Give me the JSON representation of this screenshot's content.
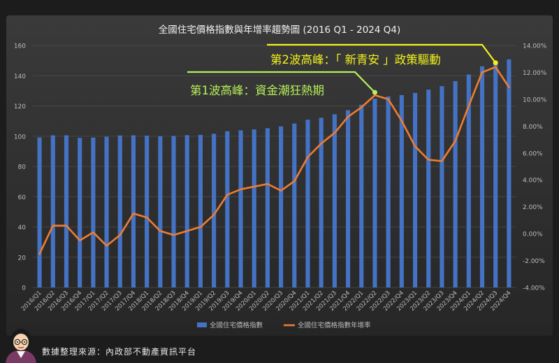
{
  "chart_data": {
    "type": "bar+line",
    "title": "全國住宅價格指數與年增率趨勢圖 (2016 Q1 - 2024 Q4)",
    "categories": [
      "2016/Q1",
      "2016/Q2",
      "2016/Q3",
      "2016/Q4",
      "2017/Q1",
      "2017/Q2",
      "2017/Q3",
      "2017/Q4",
      "2018/Q1",
      "2018/Q2",
      "2018/Q3",
      "2018/Q4",
      "2019/Q1",
      "2019/Q2",
      "2019/Q3",
      "2019/Q4",
      "2020/Q1",
      "2020/Q2",
      "2020/Q3",
      "2020/Q4",
      "2021/Q1",
      "2021/Q2",
      "2021/Q3",
      "2021/Q4",
      "2022/Q1",
      "2022/Q2",
      "2022/Q3",
      "2022/Q4",
      "2023/Q1",
      "2023/Q2",
      "2023/Q3",
      "2023/Q4",
      "2024/Q1",
      "2024/Q2",
      "2024/Q3",
      "2024/Q4"
    ],
    "series": [
      {
        "name": "全國住宅價格指數",
        "type": "bar",
        "axis": "left",
        "color": "#4472C4",
        "values": [
          99.2,
          100.6,
          100.6,
          98.9,
          99.1,
          99.7,
          100.5,
          100.6,
          100.4,
          100.0,
          100.2,
          100.7,
          100.9,
          101.6,
          103.3,
          103.9,
          104.5,
          105.3,
          106.5,
          108.4,
          110.9,
          112.2,
          114.5,
          117.2,
          120.8,
          124.8,
          126.3,
          127.2,
          128.6,
          130.8,
          133.1,
          136.4,
          140.8,
          146.2,
          148.6,
          150.8
        ]
      },
      {
        "name": "全國住宅價格指數年增率",
        "type": "line",
        "axis": "right",
        "color": "#ED7D31",
        "values": [
          -1.5,
          0.6,
          0.6,
          -0.5,
          0.1,
          -0.9,
          -0.1,
          1.5,
          1.2,
          0.2,
          -0.1,
          0.2,
          0.5,
          1.4,
          2.9,
          3.3,
          3.5,
          3.7,
          3.2,
          3.9,
          5.7,
          6.7,
          7.5,
          8.7,
          9.4,
          10.3,
          10.0,
          8.4,
          6.5,
          5.5,
          5.4,
          6.9,
          9.5,
          12.0,
          12.4,
          10.9
        ]
      }
    ],
    "y_left": {
      "min": 0,
      "max": 160,
      "ticks": [
        "0",
        "20",
        "40",
        "60",
        "80",
        "100",
        "120",
        "140",
        "160"
      ]
    },
    "y_right": {
      "min": -4,
      "max": 14,
      "ticks": [
        "-4.00%",
        "-2.00%",
        "0.00%",
        "2.00%",
        "4.00%",
        "6.00%",
        "8.00%",
        "10.00%",
        "12.00%",
        "14.00%"
      ]
    },
    "grid": true,
    "legend": "bottom",
    "annotations": [
      {
        "text": "第1波高峰：資金潮狂熱期",
        "point_index": 25,
        "color": "#b6f05a"
      },
      {
        "text": "第2波高峰：「 新青安 」政策驅動",
        "point_index": 34,
        "color": "#f2f21c"
      }
    ]
  },
  "footer": {
    "source": "數據整理來源：內政部不動產資訊平台"
  }
}
